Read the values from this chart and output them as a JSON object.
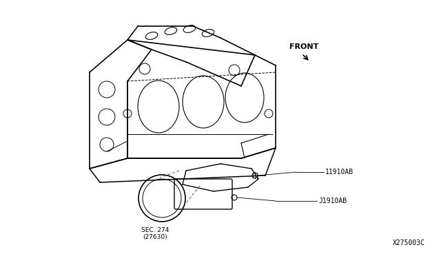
{
  "title": "",
  "bg_color": "#ffffff",
  "line_color": "#000000",
  "text_color": "#000000",
  "front_label": "FRONT",
  "part_label_1": "11910AB",
  "part_label_2": "J1910AB",
  "sec_label": "SEC. 274\n(27630)",
  "diagram_code": "X275003C",
  "fig_width": 6.4,
  "fig_height": 3.72,
  "dpi": 100
}
